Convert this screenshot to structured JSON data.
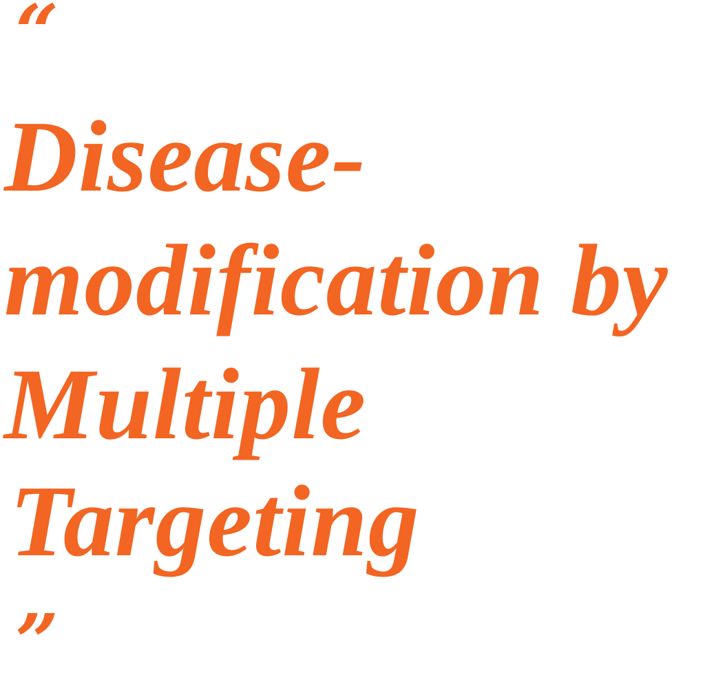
{
  "quote": {
    "open_mark": "“",
    "lines": [
      "Disease-",
      "modification by",
      "Multiple",
      "Targeting"
    ],
    "close_mark": "”"
  },
  "colors": {
    "accent": "#f26522",
    "background": "#ffffff"
  }
}
